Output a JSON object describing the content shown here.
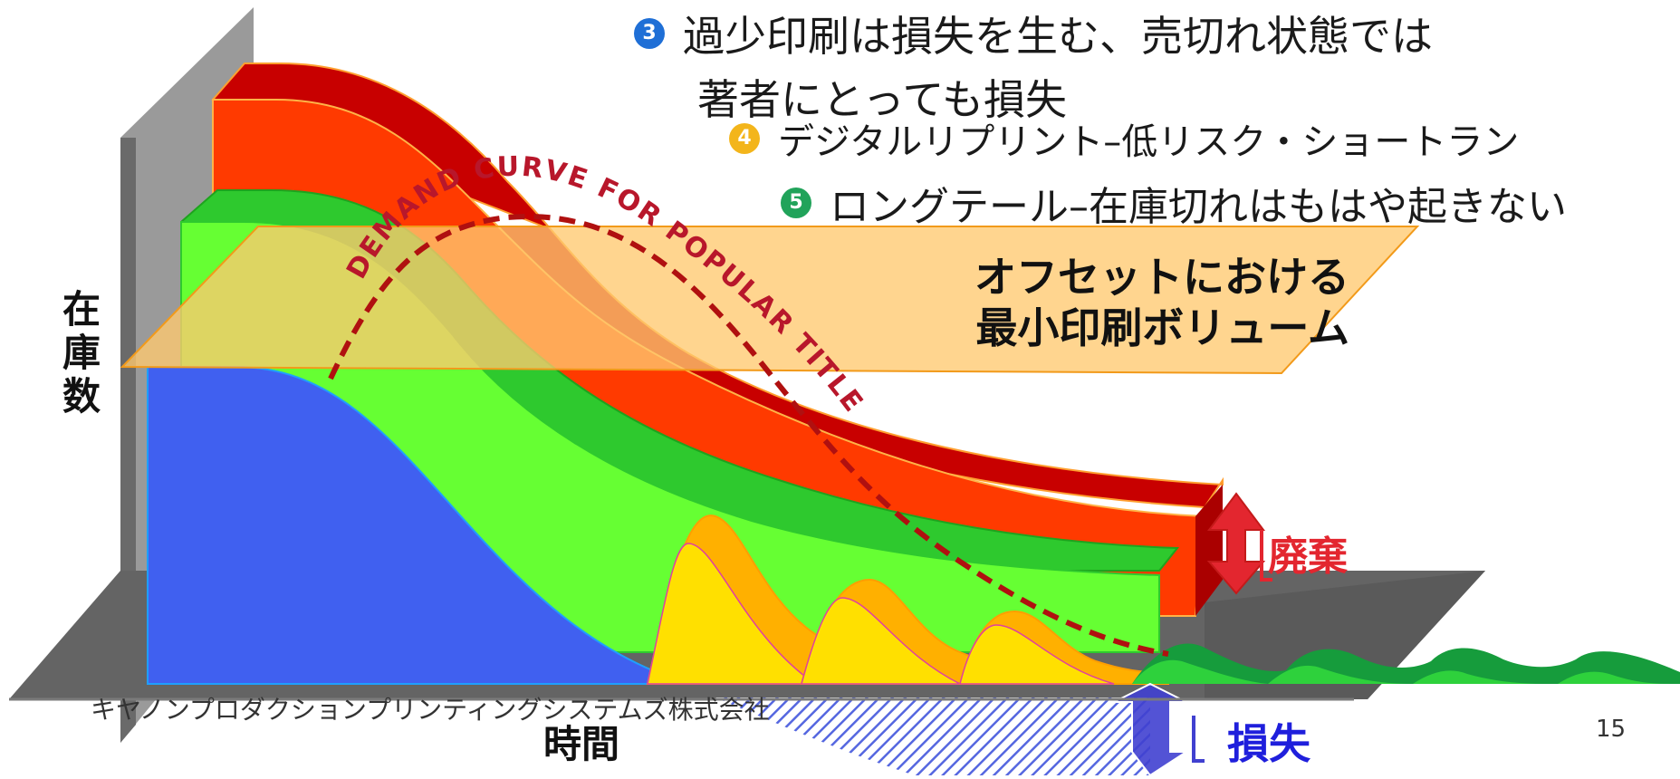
{
  "bullets": [
    {
      "num": "3",
      "color": "#1f6fd6",
      "line1": "過少印刷は損失を生む、売切れ状態では",
      "line2": "著者にとっても損失"
    },
    {
      "num": "4",
      "color": "#f3b51b",
      "line1": "デジタルリプリント–低リスク・ショートラン"
    },
    {
      "num": "5",
      "color": "#21a35a",
      "line1": "ロングテール–在庫切れはもはや起きない"
    }
  ],
  "band_label_line1": "オフセットにおける",
  "band_label_line2": "最小印刷ボリューム",
  "curve_label": "DEMAND CURVE FOR POPULAR TITLE",
  "y_axis_label": "在庫数",
  "x_axis_label": "時間",
  "waste_label": "廃棄",
  "loss_label": "損失",
  "footer_text": "キヤノンプロダクションプリンティングシステムズ株式会社",
  "page_number": "15",
  "colors": {
    "red_front": "#ff3a00",
    "red_top": "#c80000",
    "green_front": "#66ff33",
    "green_top": "#2ec92e",
    "blue_front": "#4060f0",
    "yellow_front": "#ffe000",
    "yellow_back": "#ffb000",
    "band_fill": "#ffc970",
    "demand_curve": "#b01010",
    "waste_arrow": "#e3262f",
    "loss_arrow": "#4040d0"
  }
}
